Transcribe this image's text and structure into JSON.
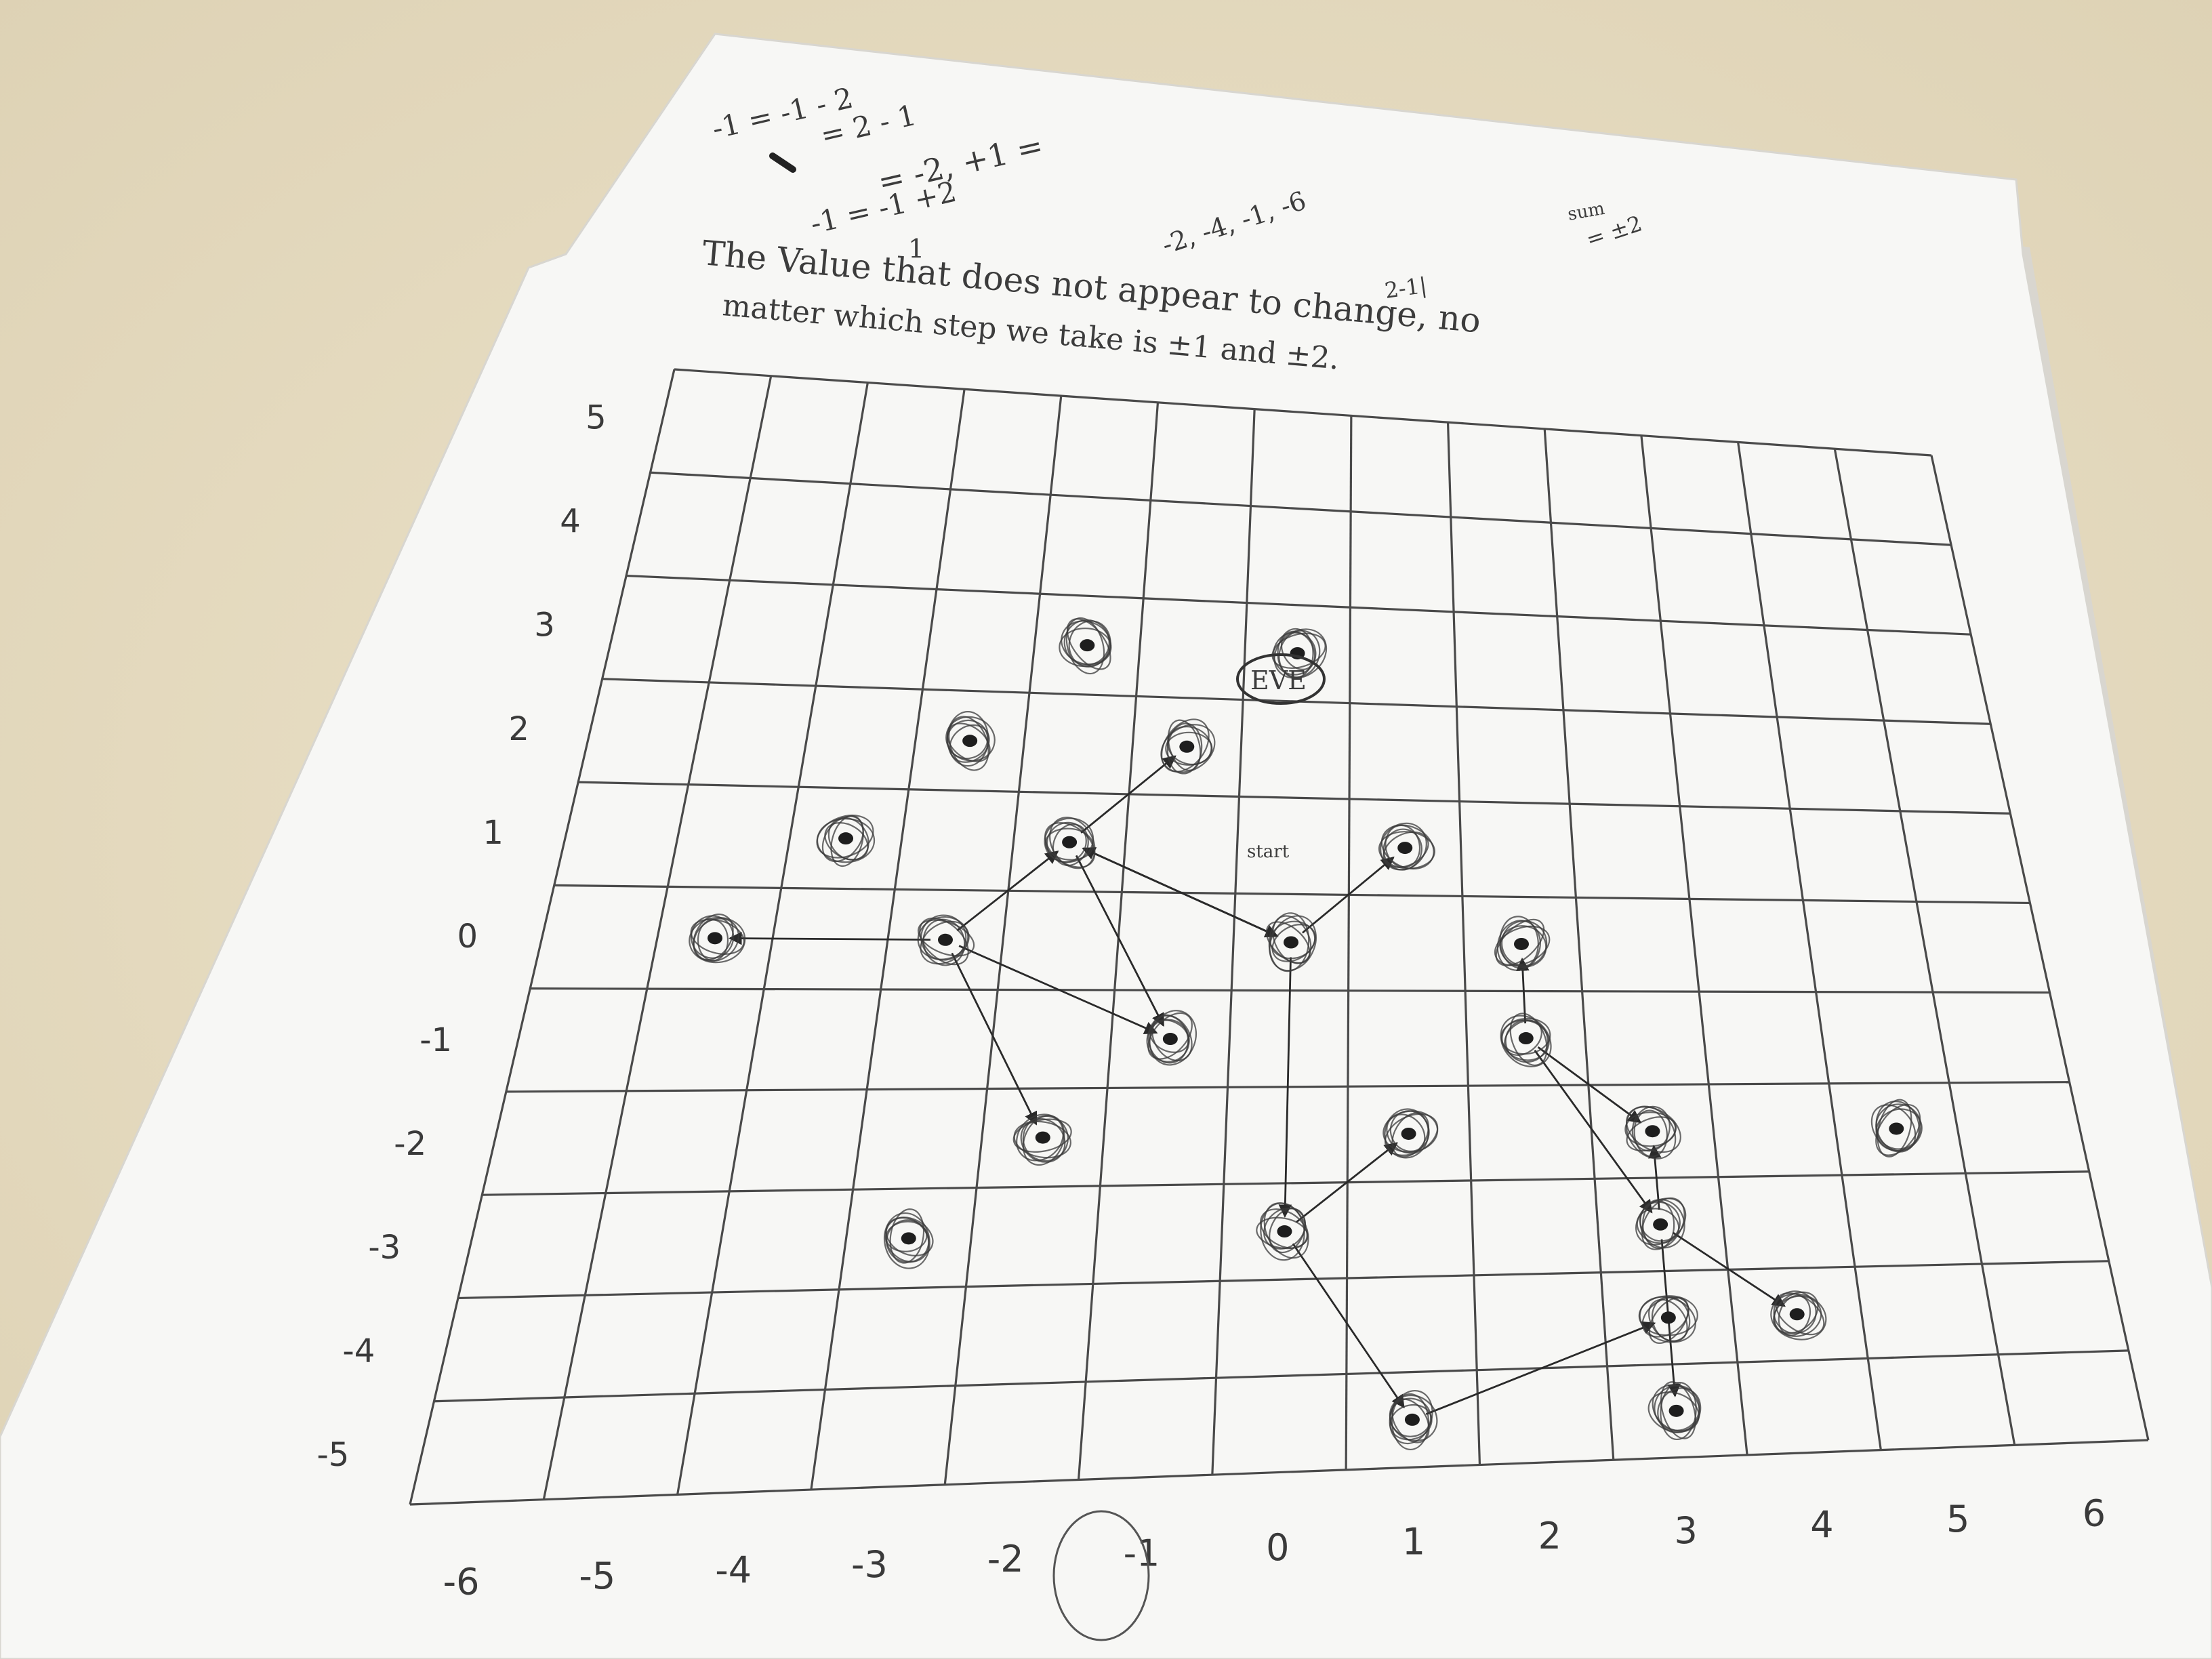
{
  "notes": {
    "scratch": [
      "-1 = -1 - 2",
      "= 2 - 1",
      "= -2, +1 =",
      "-1 = -1 +2",
      "1",
      "-2, -4, -1, -6",
      "sum",
      "= ±2"
    ],
    "sentence_line1": "The Value  that does  not   appear  to change, no",
    "sentence_line2": "matter which  step   we   take is  ±1  and  ±2.",
    "sentence_aside": "2-1|"
  },
  "grid": {
    "x_labels": [
      "-6",
      "-5",
      "-4",
      "-3",
      "-2",
      "-1",
      "0",
      "1",
      "2",
      "3",
      "4",
      "5",
      "6"
    ],
    "y_labels": [
      "5",
      "4",
      "3",
      "2",
      "1",
      "0",
      "-1",
      "-2",
      "-3",
      "-4",
      "-5"
    ]
  },
  "annotations": {
    "start_label": "start",
    "eve_label": "EVE"
  },
  "chart_data": {
    "type": "scatter",
    "title": "",
    "xlabel": "",
    "ylabel": "",
    "xlim": [
      -6,
      6
    ],
    "ylim": [
      -5,
      5
    ],
    "grid": true,
    "points": [
      {
        "x": -5,
        "y": 0
      },
      {
        "x": -4,
        "y": 1
      },
      {
        "x": -3,
        "y": 2
      },
      {
        "x": -2,
        "y": 3
      },
      {
        "x": 0,
        "y": 3
      },
      {
        "x": -1,
        "y": 2
      },
      {
        "x": -2,
        "y": 1
      },
      {
        "x": -3,
        "y": 0
      },
      {
        "x": -1,
        "y": -1
      },
      {
        "x": 0,
        "y": 0
      },
      {
        "x": 1,
        "y": 1
      },
      {
        "x": -2,
        "y": -2
      },
      {
        "x": -3,
        "y": -3
      },
      {
        "x": 0,
        "y": -3
      },
      {
        "x": 1,
        "y": -2
      },
      {
        "x": 2,
        "y": 0
      },
      {
        "x": 2,
        "y": -1
      },
      {
        "x": 3,
        "y": -2
      },
      {
        "x": 3,
        "y": -3
      },
      {
        "x": 5,
        "y": -2
      },
      {
        "x": 4,
        "y": -4
      },
      {
        "x": 3,
        "y": -4
      },
      {
        "x": 1,
        "y": -5
      },
      {
        "x": 3,
        "y": -5
      }
    ],
    "arrows": [
      [
        0,
        0,
        -2,
        1
      ],
      [
        -2,
        1,
        -1,
        2
      ],
      [
        -2,
        1,
        -1,
        -1
      ],
      [
        -2,
        1,
        0,
        0
      ],
      [
        -3,
        0,
        -2,
        1
      ],
      [
        -3,
        0,
        -5,
        0
      ],
      [
        -3,
        0,
        -1,
        -1
      ],
      [
        -3,
        0,
        -2,
        -2
      ],
      [
        0,
        0,
        1,
        1
      ],
      [
        0,
        0,
        0,
        -3
      ],
      [
        0,
        -3,
        1,
        -2
      ],
      [
        0,
        -3,
        1,
        -5
      ],
      [
        1,
        -5,
        3,
        -4
      ],
      [
        2,
        -1,
        2,
        0
      ],
      [
        2,
        -1,
        3,
        -2
      ],
      [
        2,
        -1,
        3,
        -3
      ],
      [
        3,
        -3,
        3,
        -2
      ],
      [
        3,
        -3,
        4,
        -4
      ],
      [
        3,
        -3,
        3,
        -5
      ]
    ]
  }
}
